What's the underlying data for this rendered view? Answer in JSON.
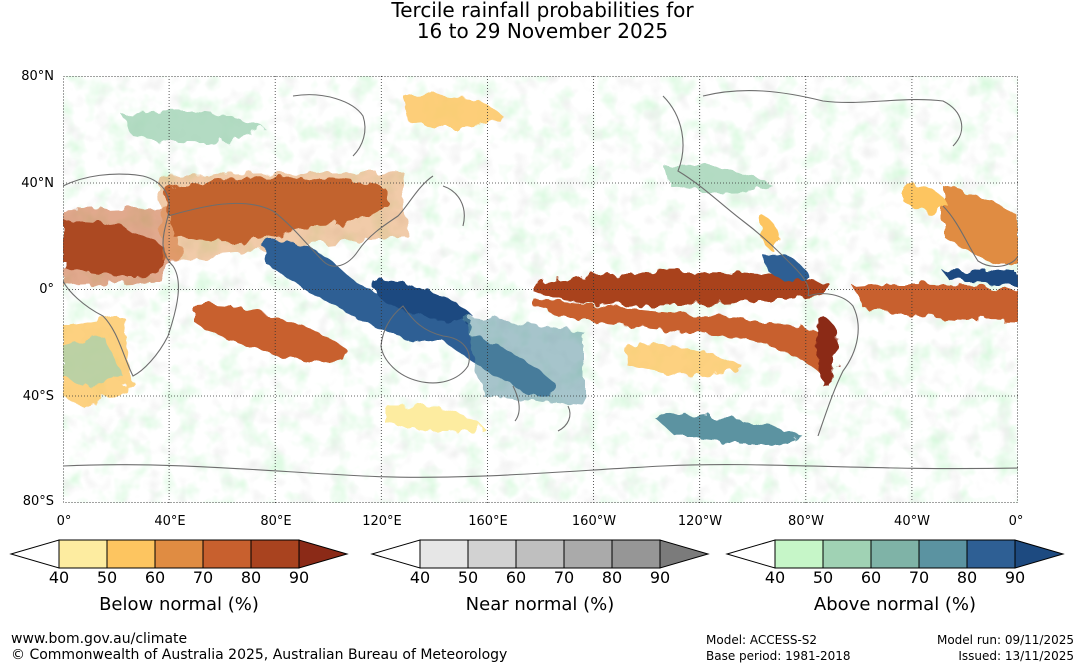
{
  "title": {
    "line1": "Tercile rainfall probabilities for",
    "line2": "16 to 29 November 2025"
  },
  "map": {
    "lat_ticks": [
      "80°N",
      "40°N",
      "0°",
      "40°S",
      "80°S"
    ],
    "lon_ticks": [
      "0°",
      "40°E",
      "80°E",
      "120°E",
      "160°E",
      "160°W",
      "120°W",
      "80°W",
      "40°W",
      "0°"
    ]
  },
  "legends": [
    {
      "label": "Below normal (%)",
      "ticks": [
        "40",
        "50",
        "60",
        "70",
        "80",
        "90"
      ],
      "colors": [
        "#ffffff",
        "#fdeca0",
        "#fdc560",
        "#e08c42",
        "#c8602e",
        "#a9431f",
        "#8b2a17"
      ]
    },
    {
      "label": "Near normal (%)",
      "ticks": [
        "40",
        "50",
        "60",
        "70",
        "80",
        "90"
      ],
      "colors": [
        "#ffffff",
        "#e6e6e6",
        "#d2d2d2",
        "#bfbfbf",
        "#aaaaaa",
        "#969696",
        "#7b7b7b"
      ]
    },
    {
      "label": "Above normal (%)",
      "ticks": [
        "40",
        "50",
        "60",
        "70",
        "80",
        "90"
      ],
      "colors": [
        "#ffffff",
        "#c6f6c8",
        "#a0d2b4",
        "#7fb3a7",
        "#5b93a1",
        "#2e5f94",
        "#1d4a80"
      ]
    }
  ],
  "footer": {
    "website": "www.bom.gov.au/climate",
    "copyright": "© Commonwealth of Australia 2025, Australian Bureau of Meteorology",
    "model": "Model: ACCESS-S2",
    "base_period": "Base period: 1981-2018",
    "model_run": "Model run: 09/11/2025",
    "issued": "Issued: 13/11/2025"
  }
}
